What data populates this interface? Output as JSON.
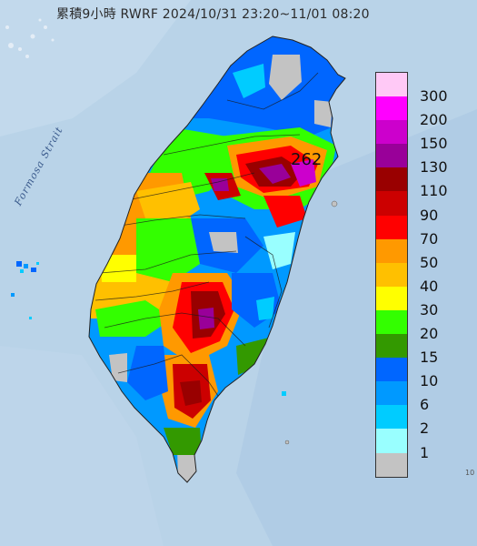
{
  "title": "累積9小時 RWRF 2024/10/31 23:20~11/01 08:20",
  "strait_label": "Formosa Strait",
  "max_value_label": "262",
  "edge_mark": "10",
  "legend": [
    {
      "label": "300",
      "color": "#ffc9f6"
    },
    {
      "label": "200",
      "color": "#ff00ff"
    },
    {
      "label": "150",
      "color": "#cc00cc"
    },
    {
      "label": "130",
      "color": "#990099"
    },
    {
      "label": "110",
      "color": "#990000"
    },
    {
      "label": "90",
      "color": "#cc0000"
    },
    {
      "label": "70",
      "color": "#ff0000"
    },
    {
      "label": "50",
      "color": "#ff9900"
    },
    {
      "label": "40",
      "color": "#ffc000"
    },
    {
      "label": "30",
      "color": "#ffff00"
    },
    {
      "label": "20",
      "color": "#33ff00"
    },
    {
      "label": "15",
      "color": "#339900"
    },
    {
      "label": "10",
      "color": "#0066ff"
    },
    {
      "label": "6",
      "color": "#0099ff"
    },
    {
      "label": "2",
      "color": "#00ccff"
    },
    {
      "label": "1",
      "color": "#99ffff"
    },
    {
      "label": "",
      "color": "#c3c3c3"
    }
  ]
}
